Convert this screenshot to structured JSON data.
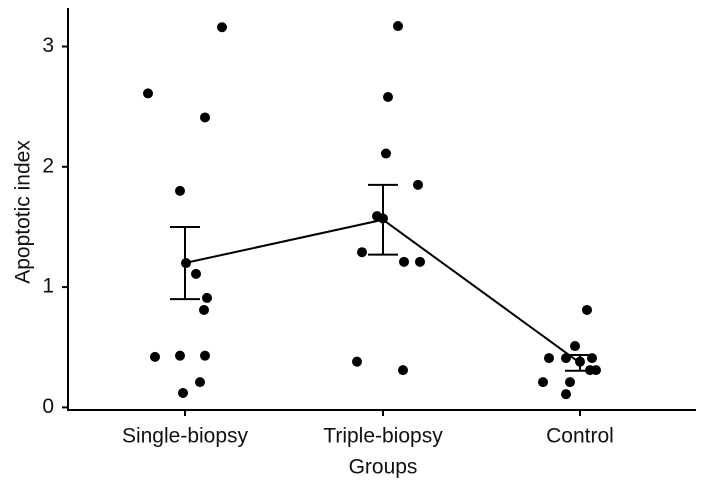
{
  "chart_data": {
    "type": "dot",
    "x_label": "Groups",
    "y_label": "Apoptotic index",
    "categories": [
      "Single-biopsy",
      "Triple-biopsy",
      "Control"
    ],
    "points": [
      [
        2.61,
        3.16,
        2.41,
        1.8,
        1.2,
        1.11,
        0.91,
        0.81,
        0.42,
        0.43,
        0.43,
        0.21,
        0.12
      ],
      [
        3.17,
        2.58,
        2.11,
        1.85,
        1.59,
        1.57,
        1.29,
        1.21,
        1.21,
        0.38,
        0.31
      ],
      [
        0.81,
        0.51,
        0.41,
        0.41,
        0.38,
        0.41,
        0.31,
        0.31,
        0.21,
        0.21,
        0.11
      ]
    ],
    "means": [
      1.2,
      1.56,
      0.37
    ],
    "errors": [
      0.3,
      0.29,
      0.065
    ],
    "color": "#000000",
    "ylim": [
      -0.03,
      3.32
    ],
    "yticks": [
      0,
      1,
      2,
      3
    ]
  }
}
